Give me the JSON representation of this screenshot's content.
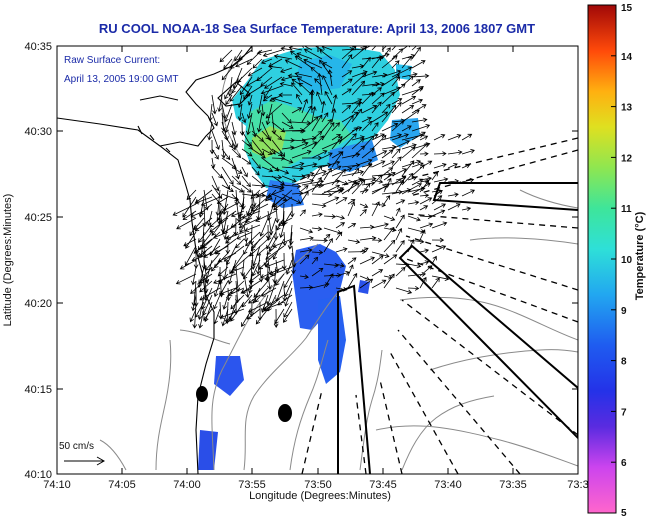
{
  "title": "RU COOL  NOAA-18  Sea Surface Temperature:  April 13, 2006 1807 GMT",
  "xlabel": "Longitude (Degrees:Minutes)",
  "ylabel": "Latitude (Degrees:Minutes)",
  "colorbar": {
    "label": "Temperature (°C)",
    "ticks": [
      "15",
      "14",
      "13",
      "12",
      "11",
      "10",
      "9",
      "8",
      "7",
      "6",
      "5"
    ],
    "min": 5,
    "max": 15
  },
  "annotation": {
    "line1": "Raw Surface Current:",
    "line2": "April 13, 2005 19:00 GMT"
  },
  "scale_label": "50 cm/s",
  "x_ticks": [
    "74:10",
    "74:05",
    "74:00",
    "73:55",
    "73:50",
    "73:45",
    "73:40",
    "73:35",
    "73:3"
  ],
  "y_ticks": [
    "40:35",
    "40:30",
    "40:25",
    "40:20",
    "40:15",
    "40:10"
  ],
  "map_colors": {
    "land": "#ffffff",
    "coast": "#000000",
    "isobath": "#8a8a8a",
    "arrows": "#000000"
  }
}
